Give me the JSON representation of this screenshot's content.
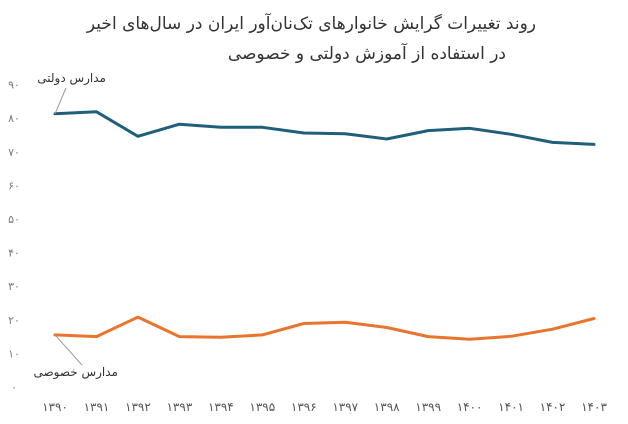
{
  "chart_data": {
    "type": "line",
    "title_line1": "روند تغییرات گرایش خانوارهای تک‌نان‌آور ایران در سال‌های اخیر",
    "title_line2": "در استفاده از آموزش دولتی و خصوصی",
    "categories": [
      "۱۳۹۰",
      "۱۳۹۱",
      "۱۳۹۲",
      "۱۳۹۳",
      "۱۳۹۴",
      "۱۳۹۵",
      "۱۳۹۶",
      "۱۳۹۷",
      "۱۳۹۸",
      "۱۳۹۹",
      "۱۴۰۰",
      "۱۴۰۱",
      "۱۴۰۲",
      "۱۴۰۳"
    ],
    "yticks": [
      "۰",
      "۱۰",
      "۲۰",
      "۳۰",
      "۴۰",
      "۵۰",
      "۶۰",
      "۷۰",
      "۸۰",
      "۹۰"
    ],
    "ylim": [
      0,
      90
    ],
    "grid": false,
    "series": [
      {
        "name": "مدارس دولتی",
        "color": "#1f5f7a",
        "values": [
          81.3,
          81.9,
          74.6,
          78.2,
          77.3,
          77.3,
          75.6,
          75.4,
          73.8,
          76.3,
          77,
          75.2,
          72.8,
          72.2
        ]
      },
      {
        "name": "مدارس خصوصی",
        "color": "#e8742d",
        "values": [
          15.5,
          15,
          20.8,
          15,
          14.8,
          15.5,
          18.9,
          19.3,
          17.7,
          15,
          14.2,
          15.1,
          17.2,
          20.4
        ]
      }
    ]
  }
}
